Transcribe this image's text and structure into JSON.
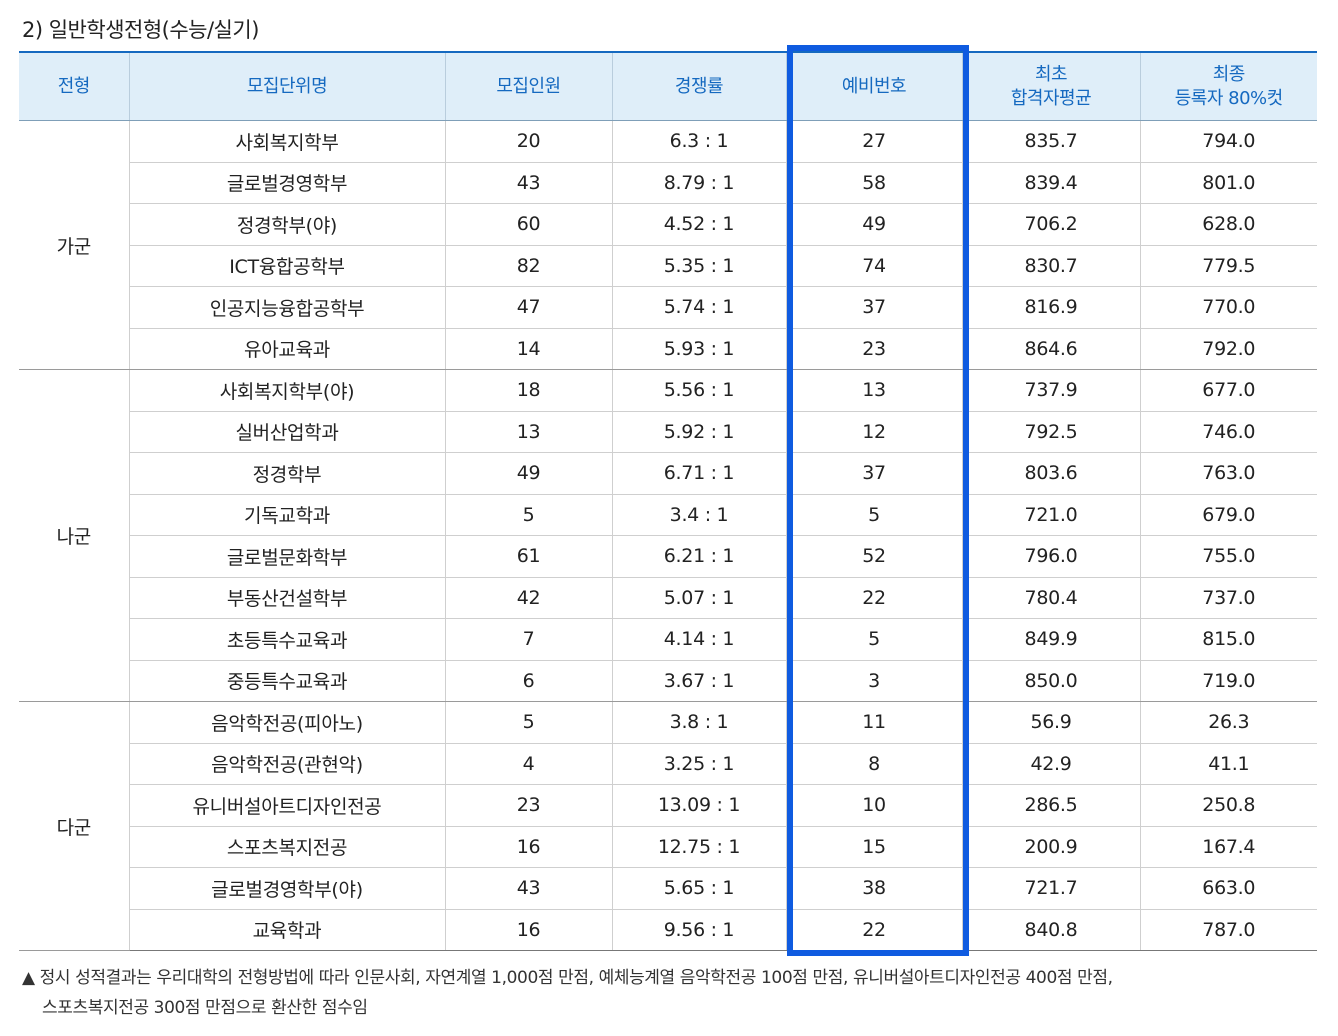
{
  "title": "2) 일반학생전형(수능/실기)",
  "headers": {
    "type": "전형",
    "unit": "모집단위명",
    "quota": "모집인원",
    "rate": "경쟁률",
    "waitlist": "예비번호",
    "first_avg_1": "최초",
    "first_avg_2": "합격자평균",
    "final_1": "최종",
    "final_2": "등록자 80%컷"
  },
  "groups": [
    {
      "name": "가군",
      "rows": [
        {
          "unit": "사회복지학부",
          "quota": "20",
          "rate": "6.3 : 1",
          "waitlist": "27",
          "first_avg": "835.7",
          "final": "794.0"
        },
        {
          "unit": "글로벌경영학부",
          "quota": "43",
          "rate": "8.79 : 1",
          "waitlist": "58",
          "first_avg": "839.4",
          "final": "801.0"
        },
        {
          "unit": "정경학부(야)",
          "quota": "60",
          "rate": "4.52 : 1",
          "waitlist": "49",
          "first_avg": "706.2",
          "final": "628.0"
        },
        {
          "unit": "ICT융합공학부",
          "quota": "82",
          "rate": "5.35 : 1",
          "waitlist": "74",
          "first_avg": "830.7",
          "final": "779.5"
        },
        {
          "unit": "인공지능융합공학부",
          "quota": "47",
          "rate": "5.74 : 1",
          "waitlist": "37",
          "first_avg": "816.9",
          "final": "770.0"
        },
        {
          "unit": "유아교육과",
          "quota": "14",
          "rate": "5.93 : 1",
          "waitlist": "23",
          "first_avg": "864.6",
          "final": "792.0"
        }
      ]
    },
    {
      "name": "나군",
      "rows": [
        {
          "unit": "사회복지학부(야)",
          "quota": "18",
          "rate": "5.56 : 1",
          "waitlist": "13",
          "first_avg": "737.9",
          "final": "677.0"
        },
        {
          "unit": "실버산업학과",
          "quota": "13",
          "rate": "5.92 : 1",
          "waitlist": "12",
          "first_avg": "792.5",
          "final": "746.0"
        },
        {
          "unit": "정경학부",
          "quota": "49",
          "rate": "6.71 : 1",
          "waitlist": "37",
          "first_avg": "803.6",
          "final": "763.0"
        },
        {
          "unit": "기독교학과",
          "quota": "5",
          "rate": "3.4 : 1",
          "waitlist": "5",
          "first_avg": "721.0",
          "final": "679.0"
        },
        {
          "unit": "글로벌문화학부",
          "quota": "61",
          "rate": "6.21 : 1",
          "waitlist": "52",
          "first_avg": "796.0",
          "final": "755.0"
        },
        {
          "unit": "부동산건설학부",
          "quota": "42",
          "rate": "5.07 : 1",
          "waitlist": "22",
          "first_avg": "780.4",
          "final": "737.0"
        },
        {
          "unit": "초등특수교육과",
          "quota": "7",
          "rate": "4.14 : 1",
          "waitlist": "5",
          "first_avg": "849.9",
          "final": "815.0"
        },
        {
          "unit": "중등특수교육과",
          "quota": "6",
          "rate": "3.67 : 1",
          "waitlist": "3",
          "first_avg": "850.0",
          "final": "719.0"
        }
      ]
    },
    {
      "name": "다군",
      "rows": [
        {
          "unit": "음악학전공(피아노)",
          "quota": "5",
          "rate": "3.8 : 1",
          "waitlist": "11",
          "first_avg": "56.9",
          "final": "26.3"
        },
        {
          "unit": "음악학전공(관현악)",
          "quota": "4",
          "rate": "3.25 : 1",
          "waitlist": "8",
          "first_avg": "42.9",
          "final": "41.1"
        },
        {
          "unit": "유니버설아트디자인전공",
          "quota": "23",
          "rate": "13.09 : 1",
          "waitlist": "10",
          "first_avg": "286.5",
          "final": "250.8"
        },
        {
          "unit": "스포츠복지전공",
          "quota": "16",
          "rate": "12.75 : 1",
          "waitlist": "15",
          "first_avg": "200.9",
          "final": "167.4"
        },
        {
          "unit": "글로벌경영학부(야)",
          "quota": "43",
          "rate": "5.65 : 1",
          "waitlist": "38",
          "first_avg": "721.7",
          "final": "663.0"
        },
        {
          "unit": "교육학과",
          "quota": "16",
          "rate": "9.56 : 1",
          "waitlist": "22",
          "first_avg": "840.8",
          "final": "787.0"
        }
      ]
    }
  ],
  "footnote": {
    "line1": "▲ 정시 성적결과는 우리대학의 전형방법에 따라 인문사회, 자연계열 1,000점 만점, 예체능계열 음악학전공 100점 만점, 유니버설아트디자인전공 400점 만점,",
    "line2": "스포츠복지전공 300점 만점으로 환산한 점수임"
  }
}
